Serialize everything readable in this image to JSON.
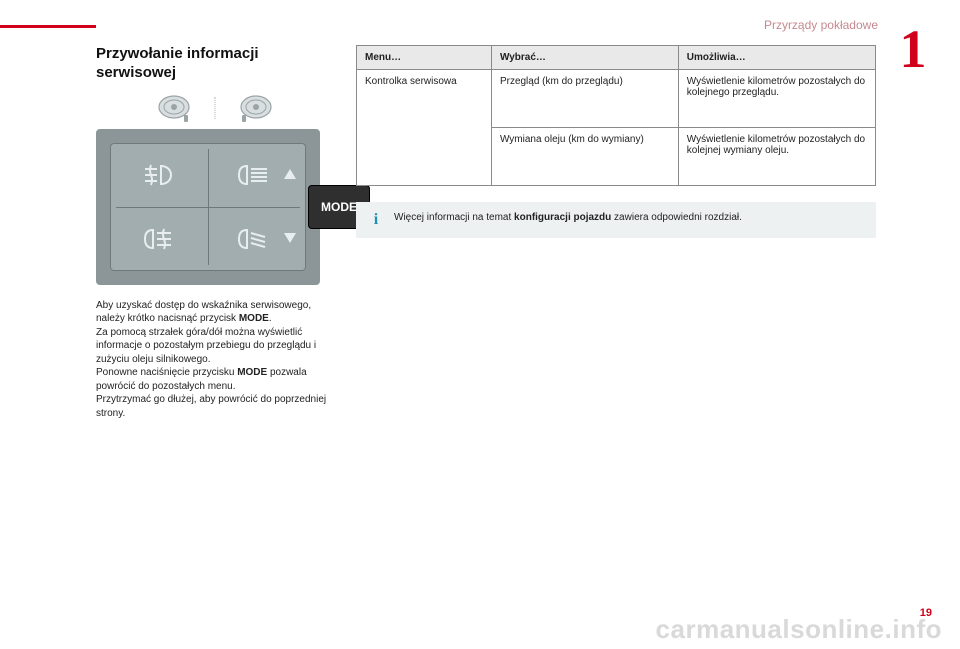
{
  "header": {
    "section_label": "Przyrządy pokładowe",
    "section_number": "1"
  },
  "left": {
    "title": "Przywołanie informacji serwisowej",
    "mode_label": "MODE",
    "paragraphs": [
      "Aby uzyskać dostęp do wskaźnika serwisowego, należy krótko nacisnąć przycisk <b>MODE</b>.",
      "Za pomocą strzałek góra/dół można wyświetlić informacje o pozostałym przebiegu do przeglądu i zużyciu oleju silnikowego.",
      "Ponowne naciśnięcie przycisku <b>MODE</b> pozwala powrócić do pozostałych menu.",
      "Przytrzymać go dłużej, aby powrócić do poprzedniej strony."
    ]
  },
  "table": {
    "headers": [
      "Menu…",
      "Wybrać…",
      "Umożliwia…"
    ],
    "row_label": "Kontrolka serwisowa",
    "rows": [
      {
        "select": "Przegląd (km do przeglądu)",
        "enables": "Wyświetlenie kilometrów pozostałych do kolejnego przeglądu."
      },
      {
        "select": "Wymiana oleju (km do wymiany)",
        "enables": "Wyświetlenie kilometrów pozostałych do kolejnej wymiany oleju."
      }
    ]
  },
  "info": {
    "text_pre": "Więcej informacji na temat ",
    "text_bold": "konfiguracji pojazdu",
    "text_post": " zawiera odpowiedni rozdział."
  },
  "footer": {
    "page": "19",
    "watermark": "carmanualsonline.info"
  },
  "colors": {
    "accent": "#d0021b",
    "panel": "#8c9698",
    "panel_inner": "#a2adaf",
    "info_bg": "#eef1f2",
    "info_i": "#1f8fb3",
    "watermark": "#d9d9d9"
  }
}
